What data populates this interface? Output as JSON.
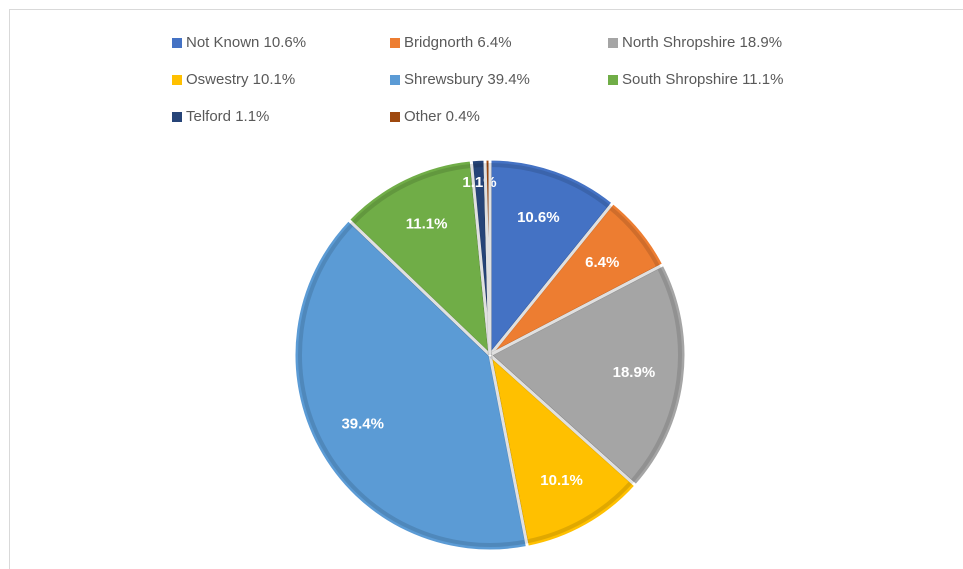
{
  "chart_data": {
    "type": "pie",
    "categories": [
      "Not Known 10.6%",
      "Bridgnorth 6.4%",
      "North Shropshire 18.9%",
      "Oswestry 10.1%",
      "Shrewsbury 39.4%",
      "South Shropshire 11.1%",
      "Telford 1.1%",
      "Other 0.4%"
    ],
    "values": [
      10.6,
      6.4,
      18.9,
      10.1,
      39.4,
      11.1,
      1.1,
      0.4
    ],
    "value_labels": [
      "10.6%",
      "6.4%",
      "18.9%",
      "10.1%",
      "39.4%",
      "11.1%",
      "1.1%",
      null
    ],
    "colors": [
      "#4472c4",
      "#ed7d31",
      "#a5a5a5",
      "#ffc000",
      "#5b9bd5",
      "#70ad47",
      "#264478",
      "#9e480e"
    ],
    "legend": "top"
  }
}
